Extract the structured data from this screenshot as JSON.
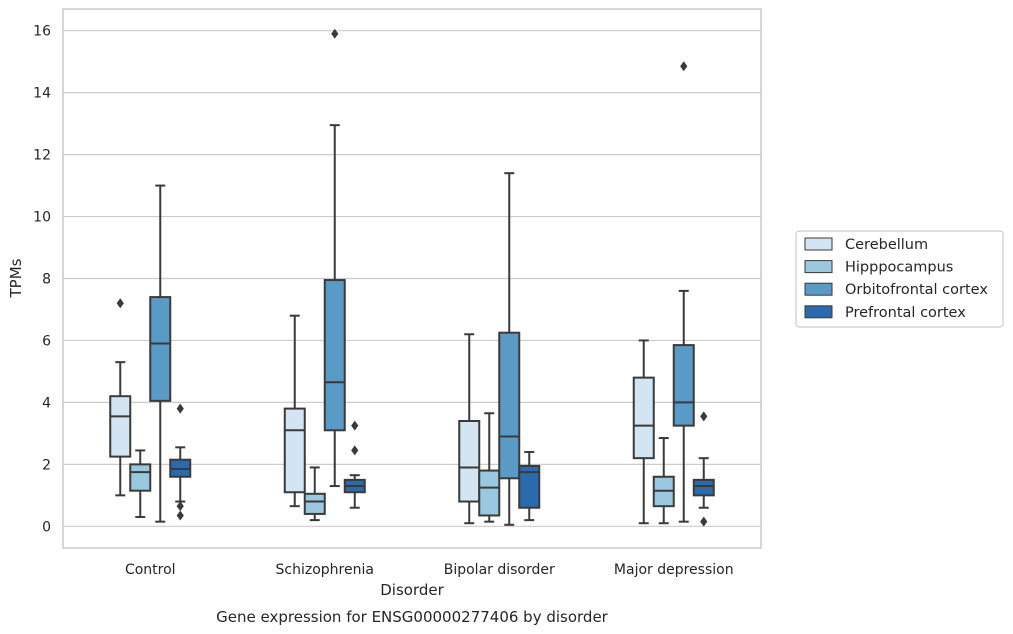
{
  "chart_data": {
    "type": "box",
    "title": "",
    "caption": "Gene expression for ENSG00000277406 by disorder",
    "xlabel": "Disorder",
    "ylabel": "TPMs",
    "ylim": [
      -0.7,
      16.7
    ],
    "yticks": [
      0,
      2,
      4,
      6,
      8,
      10,
      12,
      14,
      16
    ],
    "grid": "horizontal",
    "legend_placement": "right",
    "categories": [
      "Control",
      "Schizophrenia",
      "Bipolar disorder",
      "Major depression"
    ],
    "series": [
      {
        "name": "Cerebellum",
        "color": "#d3e4f3",
        "boxes": [
          {
            "whisker_low": 1.0,
            "q1": 2.25,
            "median": 3.55,
            "q3": 4.2,
            "whisker_high": 5.3,
            "outliers": [
              7.2
            ]
          },
          {
            "whisker_low": 0.65,
            "q1": 1.1,
            "median": 3.1,
            "q3": 3.8,
            "whisker_high": 6.8,
            "outliers": []
          },
          {
            "whisker_low": 0.1,
            "q1": 0.8,
            "median": 1.9,
            "q3": 3.4,
            "whisker_high": 6.2,
            "outliers": []
          },
          {
            "whisker_low": 0.1,
            "q1": 2.2,
            "median": 3.25,
            "q3": 4.8,
            "whisker_high": 6.0,
            "outliers": []
          }
        ]
      },
      {
        "name": "Hipppocampus",
        "color": "#9ac8e0",
        "boxes": [
          {
            "whisker_low": 0.3,
            "q1": 1.15,
            "median": 1.75,
            "q3": 2.0,
            "whisker_high": 2.45,
            "outliers": []
          },
          {
            "whisker_low": 0.2,
            "q1": 0.4,
            "median": 0.8,
            "q3": 1.05,
            "whisker_high": 1.9,
            "outliers": []
          },
          {
            "whisker_low": 0.15,
            "q1": 0.35,
            "median": 1.25,
            "q3": 1.8,
            "whisker_high": 3.65,
            "outliers": []
          },
          {
            "whisker_low": 0.1,
            "q1": 0.65,
            "median": 1.15,
            "q3": 1.6,
            "whisker_high": 2.85,
            "outliers": []
          }
        ]
      },
      {
        "name": "Orbitofrontal cortex",
        "color": "#5a9ac6",
        "boxes": [
          {
            "whisker_low": 0.15,
            "q1": 4.05,
            "median": 5.9,
            "q3": 7.4,
            "whisker_high": 11.0,
            "outliers": []
          },
          {
            "whisker_low": 1.3,
            "q1": 3.1,
            "median": 4.65,
            "q3": 7.95,
            "whisker_high": 12.95,
            "outliers": [
              15.9
            ]
          },
          {
            "whisker_low": 0.05,
            "q1": 1.55,
            "median": 2.9,
            "q3": 6.25,
            "whisker_high": 11.4,
            "outliers": []
          },
          {
            "whisker_low": 0.15,
            "q1": 3.25,
            "median": 4.0,
            "q3": 5.85,
            "whisker_high": 7.6,
            "outliers": [
              14.85
            ]
          }
        ]
      },
      {
        "name": "Prefrontal cortex",
        "color": "#2a6aad",
        "boxes": [
          {
            "whisker_low": 0.8,
            "q1": 1.6,
            "median": 1.85,
            "q3": 2.15,
            "whisker_high": 2.55,
            "outliers": [
              3.8,
              0.65,
              0.35
            ]
          },
          {
            "whisker_low": 0.6,
            "q1": 1.1,
            "median": 1.3,
            "q3": 1.5,
            "whisker_high": 1.65,
            "outliers": [
              3.25,
              2.45
            ]
          },
          {
            "whisker_low": 0.2,
            "q1": 0.6,
            "median": 1.75,
            "q3": 1.95,
            "whisker_high": 2.4,
            "outliers": []
          },
          {
            "whisker_low": 0.6,
            "q1": 1.0,
            "median": 1.3,
            "q3": 1.5,
            "whisker_high": 2.2,
            "outliers": [
              3.55,
              0.15
            ]
          }
        ]
      }
    ]
  }
}
